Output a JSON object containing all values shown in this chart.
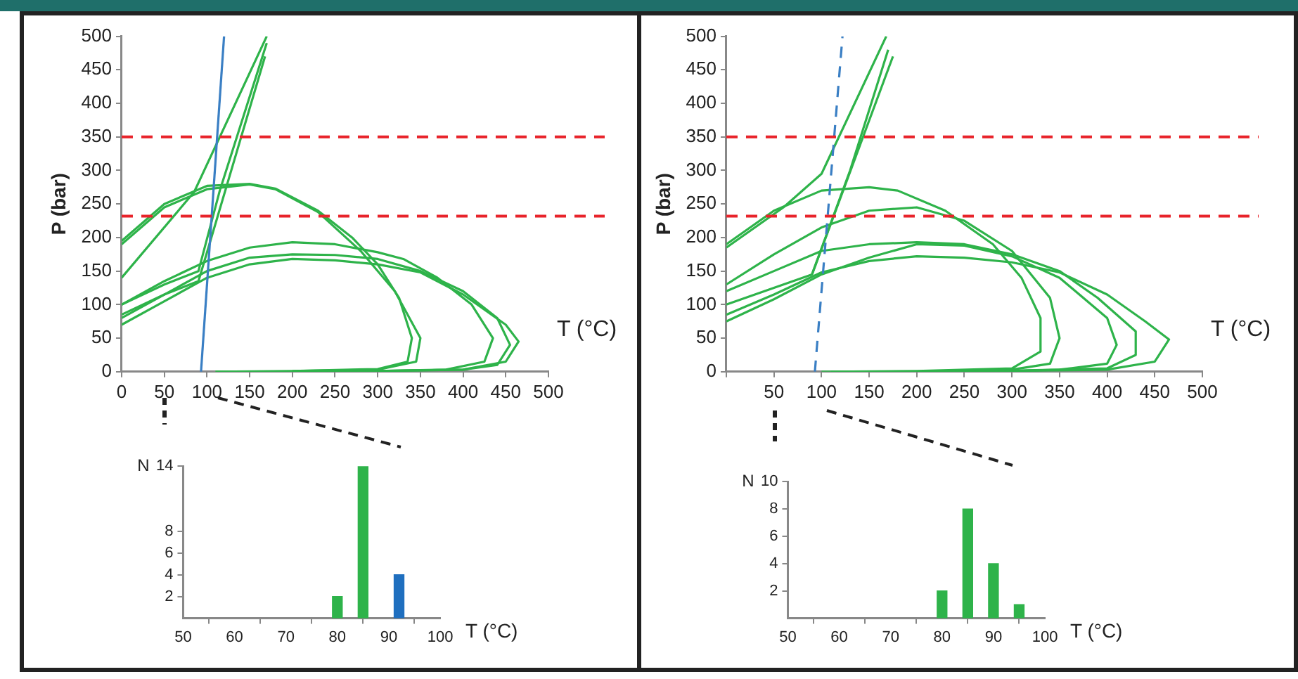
{
  "chart_data": [
    {
      "type": "line",
      "xlabel": "T (°C)",
      "ylabel": "P (bar)",
      "xlim": [
        0,
        500
      ],
      "ylim": [
        0,
        500
      ],
      "xticks": [
        0,
        50,
        100,
        150,
        200,
        250,
        300,
        350,
        400,
        450,
        500
      ],
      "yticks": [
        0,
        50,
        100,
        150,
        200,
        250,
        300,
        350,
        400,
        450,
        500
      ],
      "grid": false,
      "legend": false,
      "marker": "none",
      "ref_lines": [
        {
          "axis": "y",
          "value": 350,
          "color": "#e8232a",
          "line_style": "dashed"
        },
        {
          "axis": "y",
          "value": 232,
          "color": "#e8232a",
          "line_style": "dashed"
        }
      ],
      "series": [
        {
          "color": "#3a7fc4",
          "x": [
            93,
            120
          ],
          "values": [
            0,
            500
          ]
        },
        {
          "color": "#2eb34a",
          "x": [
            0,
            50,
            100,
            150,
            180,
            230,
            270,
            300,
            325,
            340,
            335,
            300,
            200,
            110
          ],
          "values": [
            195,
            250,
            277,
            280,
            273,
            240,
            200,
            160,
            110,
            50,
            15,
            4,
            1,
            0
          ]
        },
        {
          "color": "#2eb34a",
          "x": [
            0,
            50,
            100,
            150,
            180,
            230,
            280,
            320,
            350,
            345,
            300,
            200
          ],
          "values": [
            190,
            245,
            272,
            279,
            272,
            238,
            180,
            120,
            50,
            15,
            3,
            1
          ]
        },
        {
          "color": "#2eb34a",
          "x": [
            0,
            85,
            170
          ],
          "values": [
            140,
            268,
            500
          ]
        },
        {
          "color": "#2eb34a",
          "x": [
            0,
            50,
            90,
            115,
            170
          ],
          "values": [
            100,
            130,
            150,
            270,
            490
          ]
        },
        {
          "color": "#2eb34a",
          "x": [
            0,
            50,
            90,
            168
          ],
          "values": [
            85,
            115,
            135,
            470
          ]
        },
        {
          "color": "#2eb34a",
          "x": [
            0,
            50,
            100,
            150,
            200,
            250,
            300,
            350,
            400,
            440,
            455,
            440,
            400,
            300,
            200
          ],
          "values": [
            80,
            115,
            150,
            170,
            175,
            174,
            168,
            150,
            120,
            80,
            40,
            10,
            3,
            1,
            0
          ]
        },
        {
          "color": "#2eb34a",
          "x": [
            0,
            50,
            100,
            150,
            200,
            250,
            300,
            330,
            370,
            410,
            435,
            425,
            380,
            300,
            200,
            110
          ],
          "values": [
            100,
            135,
            165,
            185,
            193,
            190,
            178,
            168,
            140,
            100,
            50,
            15,
            3,
            1,
            0,
            0
          ]
        },
        {
          "color": "#2eb34a",
          "x": [
            0,
            50,
            100,
            150,
            200,
            250,
            300,
            350,
            400,
            450,
            465,
            450,
            400,
            300
          ],
          "values": [
            70,
            105,
            140,
            160,
            168,
            166,
            160,
            148,
            115,
            70,
            45,
            15,
            3,
            1
          ]
        }
      ]
    },
    {
      "type": "line",
      "xlabel": "T (°C)",
      "ylabel": "P (bar)",
      "xlim": [
        0,
        500
      ],
      "ylim": [
        0,
        500
      ],
      "xticks": [
        {
          "value": 0,
          "label": null
        },
        50,
        100,
        150,
        200,
        250,
        300,
        350,
        400,
        450,
        500
      ],
      "yticks": [
        0,
        50,
        100,
        150,
        200,
        250,
        300,
        350,
        400,
        450,
        500
      ],
      "grid": false,
      "legend": false,
      "marker": "none",
      "ref_lines": [
        {
          "axis": "y",
          "value": 350,
          "color": "#e8232a",
          "line_style": "dashed"
        },
        {
          "axis": "y",
          "value": 232,
          "color": "#e8232a",
          "line_style": "dashed"
        }
      ],
      "series": [
        {
          "color": "#3a7fc4",
          "line_style": "dashed",
          "x": [
            93,
            122
          ],
          "values": [
            0,
            500
          ]
        },
        {
          "color": "#2eb34a",
          "x": [
            0,
            50,
            100,
            150,
            180,
            230,
            280,
            310,
            330,
            330,
            300,
            200,
            110
          ],
          "values": [
            190,
            240,
            270,
            275,
            270,
            240,
            190,
            140,
            80,
            30,
            5,
            1,
            0
          ]
        },
        {
          "color": "#2eb34a",
          "x": [
            0,
            50,
            100,
            150,
            200,
            250,
            300,
            340,
            350,
            340,
            300,
            200
          ],
          "values": [
            130,
            175,
            215,
            240,
            245,
            225,
            180,
            110,
            50,
            12,
            3,
            0
          ]
        },
        {
          "color": "#2eb34a",
          "x": [
            0,
            60,
            100,
            168
          ],
          "values": [
            185,
            245,
            295,
            500
          ]
        },
        {
          "color": "#2eb34a",
          "x": [
            0,
            50,
            90,
            130,
            170
          ],
          "values": [
            100,
            125,
            145,
            300,
            480
          ]
        },
        {
          "color": "#2eb34a",
          "x": [
            90,
            175
          ],
          "values": [
            145,
            470
          ]
        },
        {
          "color": "#2eb34a",
          "x": [
            0,
            50,
            100,
            150,
            200,
            250,
            300,
            350,
            400,
            440,
            465,
            450,
            400,
            300,
            200,
            100
          ],
          "values": [
            85,
            115,
            148,
            165,
            172,
            170,
            163,
            148,
            115,
            75,
            48,
            15,
            3,
            1,
            0,
            0
          ]
        },
        {
          "color": "#2eb34a",
          "x": [
            0,
            50,
            100,
            150,
            200,
            250,
            300,
            350,
            400,
            410,
            400,
            350,
            250
          ],
          "values": [
            75,
            108,
            145,
            170,
            190,
            188,
            172,
            140,
            80,
            40,
            12,
            3,
            0
          ]
        },
        {
          "color": "#2eb34a",
          "x": [
            0,
            50,
            100,
            150,
            200,
            250,
            300,
            350,
            390,
            430,
            430,
            400,
            300
          ],
          "values": [
            120,
            150,
            180,
            190,
            193,
            190,
            175,
            150,
            110,
            60,
            25,
            5,
            1
          ]
        }
      ]
    },
    {
      "type": "bar",
      "xlabel": "T (°C)",
      "ylabel": "N",
      "xlim": [
        50,
        100
      ],
      "ylim": [
        0,
        14
      ],
      "xticks": [
        50,
        60,
        70,
        80,
        90,
        100
      ],
      "yticks": [
        2,
        4,
        6,
        8,
        14
      ],
      "grid": false,
      "legend": false,
      "x": [
        80,
        85,
        92
      ],
      "values": [
        2,
        14,
        4
      ],
      "colors": [
        "#2eb34a",
        "#2eb34a",
        "#1f6fbf"
      ]
    },
    {
      "type": "bar",
      "xlabel": "T (°C)",
      "ylabel": "N",
      "xlim": [
        50,
        100
      ],
      "ylim": [
        0,
        10
      ],
      "xticks": [
        50,
        60,
        70,
        80,
        90,
        100
      ],
      "yticks": [
        2,
        4,
        6,
        8,
        10
      ],
      "grid": false,
      "legend": false,
      "x": [
        80,
        85,
        90,
        95
      ],
      "values": [
        2,
        8,
        4,
        1
      ],
      "colors": [
        "#2eb34a",
        "#2eb34a",
        "#2eb34a",
        "#2eb34a"
      ]
    }
  ]
}
